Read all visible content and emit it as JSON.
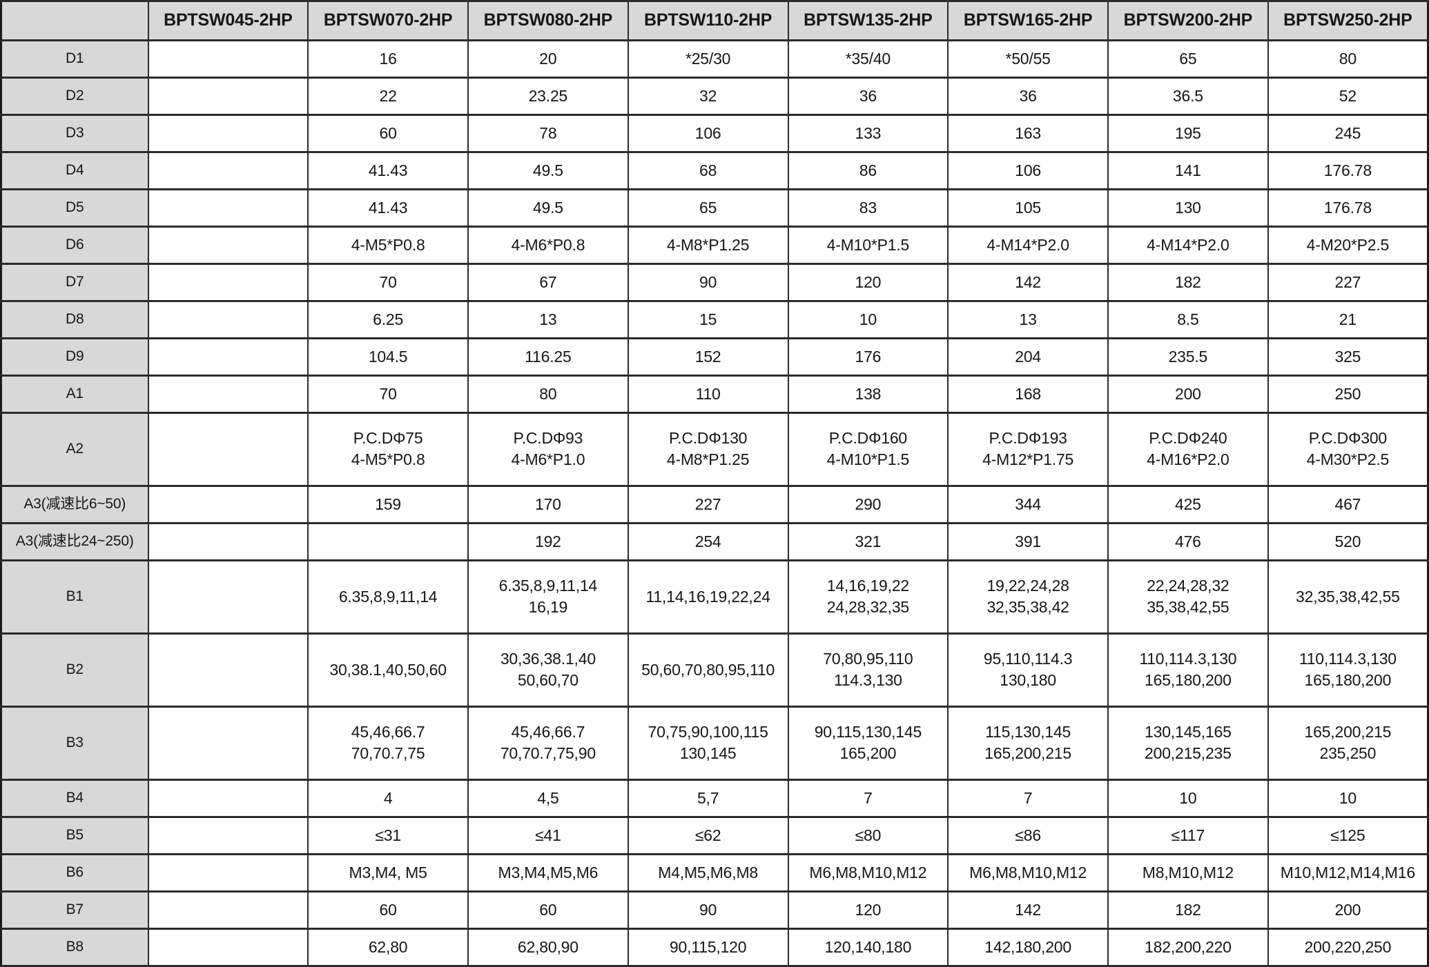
{
  "colors": {
    "header_bg": "#d8d8d8",
    "border": "#2a2a2a",
    "text": "#161616",
    "cell_bg": "#ffffff"
  },
  "chart_data": {
    "type": "table",
    "corner_label": "",
    "columns": [
      "BPTSW045-2HP",
      "BPTSW070-2HP",
      "BPTSW080-2HP",
      "BPTSW110-2HP",
      "BPTSW135-2HP",
      "BPTSW165-2HP",
      "BPTSW200-2HP",
      "BPTSW250-2HP"
    ],
    "rows": [
      {
        "label": "D1",
        "values": [
          "",
          "16",
          "20",
          "*25/30",
          "*35/40",
          "*50/55",
          "65",
          "80"
        ]
      },
      {
        "label": "D2",
        "values": [
          "",
          "22",
          "23.25",
          "32",
          "36",
          "36",
          "36.5",
          "52"
        ]
      },
      {
        "label": "D3",
        "values": [
          "",
          "60",
          "78",
          "106",
          "133",
          "163",
          "195",
          "245"
        ]
      },
      {
        "label": "D4",
        "values": [
          "",
          "41.43",
          "49.5",
          "68",
          "86",
          "106",
          "141",
          "176.78"
        ]
      },
      {
        "label": "D5",
        "values": [
          "",
          "41.43",
          "49.5",
          "65",
          "83",
          "105",
          "130",
          "176.78"
        ]
      },
      {
        "label": "D6",
        "values": [
          "",
          "4-M5*P0.8",
          "4-M6*P0.8",
          "4-M8*P1.25",
          "4-M10*P1.5",
          "4-M14*P2.0",
          "4-M14*P2.0",
          "4-M20*P2.5"
        ]
      },
      {
        "label": "D7",
        "values": [
          "",
          "70",
          "67",
          "90",
          "120",
          "142",
          "182",
          "227"
        ]
      },
      {
        "label": "D8",
        "values": [
          "",
          "6.25",
          "13",
          "15",
          "10",
          "13",
          "8.5",
          "21"
        ]
      },
      {
        "label": "D9",
        "values": [
          "",
          "104.5",
          "116.25",
          "152",
          "176",
          "204",
          "235.5",
          "325"
        ]
      },
      {
        "label": "A1",
        "values": [
          "",
          "70",
          "80",
          "110",
          "138",
          "168",
          "200",
          "250"
        ]
      },
      {
        "label": "A2",
        "values": [
          "",
          "P.C.DΦ75\n4-M5*P0.8",
          "P.C.DΦ93\n4-M6*P1.0",
          "P.C.DΦ130\n4-M8*P1.25",
          "P.C.DΦ160\n4-M10*P1.5",
          "P.C.DΦ193\n4-M12*P1.75",
          "P.C.DΦ240\n4-M16*P2.0",
          "P.C.DΦ300\n4-M30*P2.5"
        ]
      },
      {
        "label": "A3(减速比6~50)",
        "values": [
          "",
          "159",
          "170",
          "227",
          "290",
          "344",
          "425",
          "467"
        ]
      },
      {
        "label": "A3(减速比24~250)",
        "values": [
          "",
          "",
          "192",
          "254",
          "321",
          "391",
          "476",
          "520"
        ]
      },
      {
        "label": "B1",
        "values": [
          "",
          "6.35,8,9,11,14",
          "6.35,8,9,11,14\n16,19",
          "11,14,16,19,22,24",
          "14,16,19,22\n24,28,32,35",
          "19,22,24,28\n32,35,38,42",
          "22,24,28,32\n35,38,42,55",
          "32,35,38,42,55"
        ]
      },
      {
        "label": "B2",
        "values": [
          "",
          "30,38.1,40,50,60",
          "30,36,38.1,40\n50,60,70",
          "50,60,70,80,95,110",
          "70,80,95,110\n114.3,130",
          "95,110,114.3\n130,180",
          "110,114.3,130\n165,180,200",
          "110,114.3,130\n165,180,200"
        ]
      },
      {
        "label": "B3",
        "values": [
          "",
          "45,46,66.7\n70,70.7,75",
          "45,46,66.7\n70,70.7,75,90",
          "70,75,90,100,115\n130,145",
          "90,115,130,145\n165,200",
          "115,130,145\n165,200,215",
          "130,145,165\n200,215,235",
          "165,200,215\n235,250"
        ]
      },
      {
        "label": "B4",
        "values": [
          "",
          "4",
          "4,5",
          "5,7",
          "7",
          "7",
          "10",
          "10"
        ]
      },
      {
        "label": "B5",
        "values": [
          "",
          "≤31",
          "≤41",
          "≤62",
          "≤80",
          "≤86",
          "≤117",
          "≤125"
        ]
      },
      {
        "label": "B6",
        "values": [
          "",
          "M3,M4, M5",
          "M3,M4,M5,M6",
          "M4,M5,M6,M8",
          "M6,M8,M10,M12",
          "M6,M8,M10,M12",
          "M8,M10,M12",
          "M10,M12,M14,M16"
        ]
      },
      {
        "label": "B7",
        "values": [
          "",
          "60",
          "60",
          "90",
          "120",
          "142",
          "182",
          "200"
        ]
      },
      {
        "label": "B8",
        "values": [
          "",
          "62,80",
          "62,80,90",
          "90,115,120",
          "120,140,180",
          "142,180,200",
          "182,200,220",
          "200,220,250"
        ]
      }
    ]
  }
}
